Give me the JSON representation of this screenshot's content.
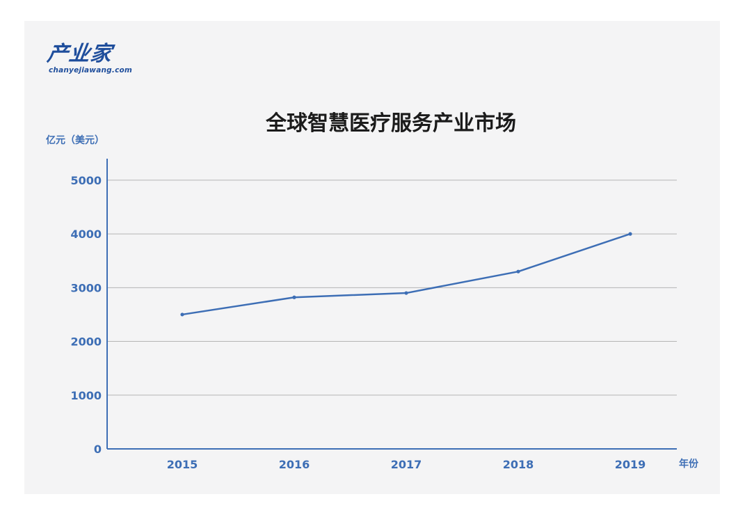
{
  "logo": {
    "name_cn": "产业家",
    "name_en": "chanyejiawang.com"
  },
  "chart_data": {
    "type": "line",
    "title": "全球智慧医疗服务产业市场",
    "ylabel": "亿元（美元）",
    "xlabel": "年份",
    "categories": [
      "2015",
      "2016",
      "2017",
      "2018",
      "2019"
    ],
    "series": [
      {
        "values": [
          2500,
          2820,
          2900,
          3300,
          4000
        ]
      }
    ],
    "yticks": [
      0,
      1000,
      2000,
      3000,
      4000,
      5000
    ],
    "ylim": [
      0,
      5400
    ],
    "grid": true,
    "colors": {
      "line": "#3d6eb5",
      "axis": "#3d6eb5",
      "tick_text": "#3d6eb5",
      "grid": "#b5b5b5",
      "title": "#1b1b1b",
      "background": "#f4f4f5"
    }
  }
}
